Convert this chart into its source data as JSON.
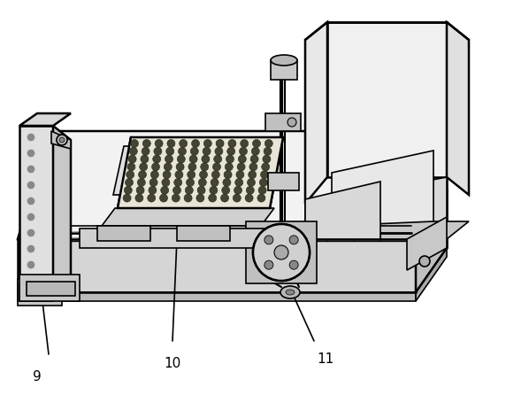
{
  "bg_color": "#ffffff",
  "lc": "#000000",
  "lw": 1.2,
  "lw_thick": 1.8,
  "figsize": [
    5.72,
    4.46
  ],
  "dpi": 100,
  "label_9": "9",
  "label_10": "10",
  "label_11": "11"
}
